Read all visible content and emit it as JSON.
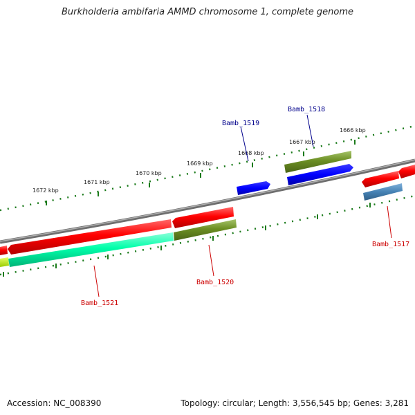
{
  "title": "Burkholderia ambifaria AMMD chromosome 1, complete genome",
  "footer": {
    "accession": "Accession: NC_008390",
    "summary": "Topology: circular; Length: 3,556,545 bp; Genes: 3,281"
  },
  "scale_labels": [
    "1672 kbp",
    "1671 kbp",
    "1670 kbp",
    "1669 kbp",
    "1668 kbp",
    "1667 kbp",
    "1666 kbp"
  ],
  "gene_labels": {
    "bamb_1519": "Bamb_1519",
    "bamb_1518": "Bamb_1518",
    "bamb_1517": "Bamb_1517",
    "bamb_1520": "Bamb_1520",
    "bamb_1521": "Bamb_1521"
  },
  "colors": {
    "backbone": "#808080",
    "gene_red": "#ff0000",
    "gene_olive": "#6b8e23",
    "gene_blue": "#0000ff",
    "gene_cyan": "#00ffaa",
    "gene_steel": "#4682b4",
    "tick_green": "#1a7a1a",
    "label_blue": "#00008b",
    "label_red": "#cc0000"
  }
}
